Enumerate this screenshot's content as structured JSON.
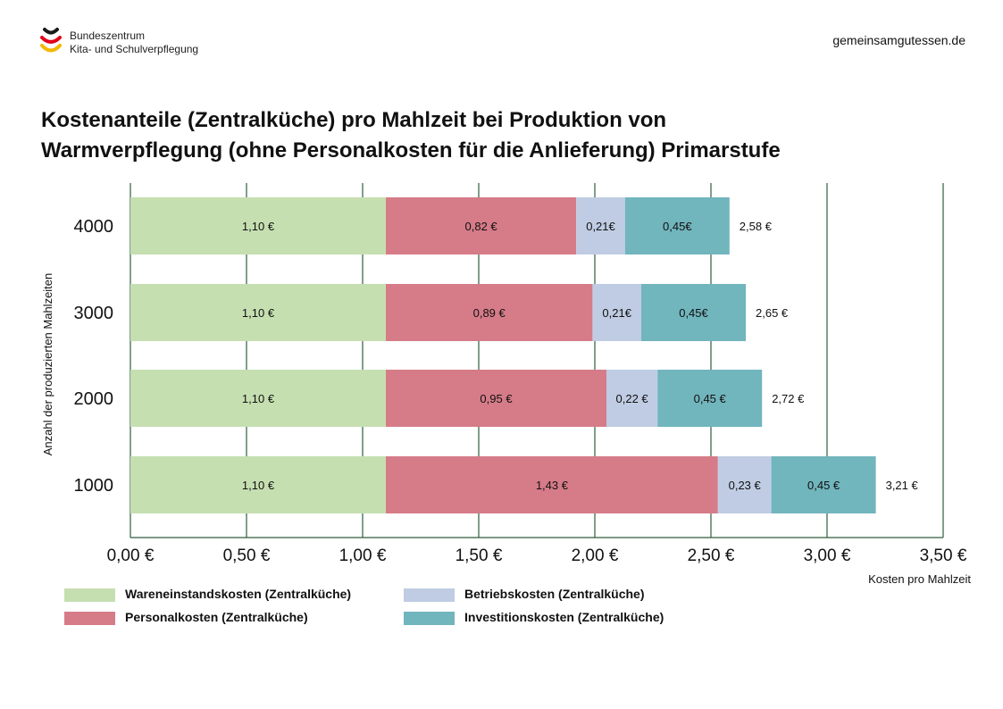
{
  "logo": {
    "line1": "Bundeszentrum",
    "line2": "Kita- und Schulverpflegung",
    "colors": [
      "#1a1a1a",
      "#e2001a",
      "#f5b800"
    ]
  },
  "site": "gemeinsamgutessen.de",
  "title": {
    "line1": "Kostenanteile (Zentralküche) pro Mahlzeit bei Produktion von",
    "line2": "Warmverpflegung (ohne Personalkosten für die Anlieferung) Primarstufe"
  },
  "chart_data": {
    "type": "bar",
    "orientation": "horizontal",
    "stacked": true,
    "categories": [
      "4000",
      "3000",
      "2000",
      "1000"
    ],
    "series": [
      {
        "name": "Wareneinstandskosten (Zentralküche)",
        "color": "#c6dfb1",
        "values": [
          1.1,
          1.1,
          1.1,
          1.1
        ],
        "labels": [
          "1,10 €",
          "1,10 €",
          "1,10 €",
          "1,10 €"
        ]
      },
      {
        "name": "Personalkosten (Zentralküche)",
        "color": "#d67b88",
        "values": [
          0.82,
          0.89,
          0.95,
          1.43
        ],
        "labels": [
          "0,82 €",
          "0,89 €",
          "0,95 €",
          "1,43 €"
        ]
      },
      {
        "name": "Betriebskosten (Zentralküche)",
        "color": "#bfcce3",
        "values": [
          0.21,
          0.21,
          0.22,
          0.23
        ],
        "labels": [
          "0,21€",
          "0,21€",
          "0,22 €",
          "0,23 €"
        ]
      },
      {
        "name": "Investitionskosten (Zentralküche)",
        "color": "#71b5bd",
        "values": [
          0.45,
          0.45,
          0.45,
          0.45
        ],
        "labels": [
          "0,45€",
          "0,45€",
          "0,45 €",
          "0,45 €"
        ]
      }
    ],
    "totals": [
      2.58,
      2.65,
      2.72,
      3.21
    ],
    "total_labels": [
      "2,58 €",
      "2,65 €",
      "2,72 €",
      "3,21 €"
    ],
    "xlim": [
      0,
      3.5
    ],
    "xticks": [
      0,
      0.5,
      1.0,
      1.5,
      2.0,
      2.5,
      3.0,
      3.5
    ],
    "xtick_labels": [
      "0,00 €",
      "0,50 €",
      "1,00 €",
      "1,50 €",
      "2,00 €",
      "2,50 €",
      "3,00 €",
      "3,50 €"
    ],
    "xlabel": "Kosten pro Mahlzeit",
    "ylabel": "Anzahl der produzierten Mahlzeiten",
    "grid": true,
    "grid_color": "#2e5e3e",
    "legend_position": "bottom-left"
  }
}
